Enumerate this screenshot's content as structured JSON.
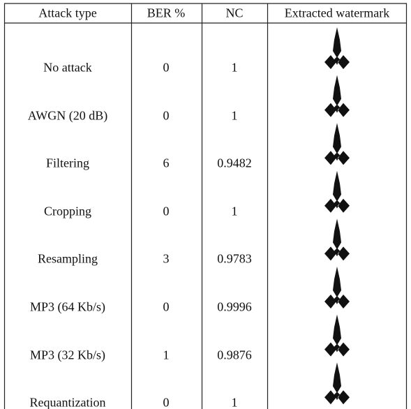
{
  "table": {
    "header": [
      "Attack type",
      "BER %",
      "NC",
      "Extracted watermark"
    ],
    "rows": [
      [
        "No attack",
        0,
        1
      ],
      [
        "AWGN (20 dB)",
        0,
        1
      ],
      [
        "Filtering",
        6,
        0.9482
      ],
      [
        "Cropping",
        0,
        1
      ],
      [
        "Resampling",
        3,
        0.9783
      ],
      [
        "MP3 (64 Kb/s)",
        0,
        0.9996
      ],
      [
        "MP3 (32 Kb/s)",
        1,
        0.9876
      ],
      [
        "Requantization",
        0,
        1
      ]
    ]
  }
}
